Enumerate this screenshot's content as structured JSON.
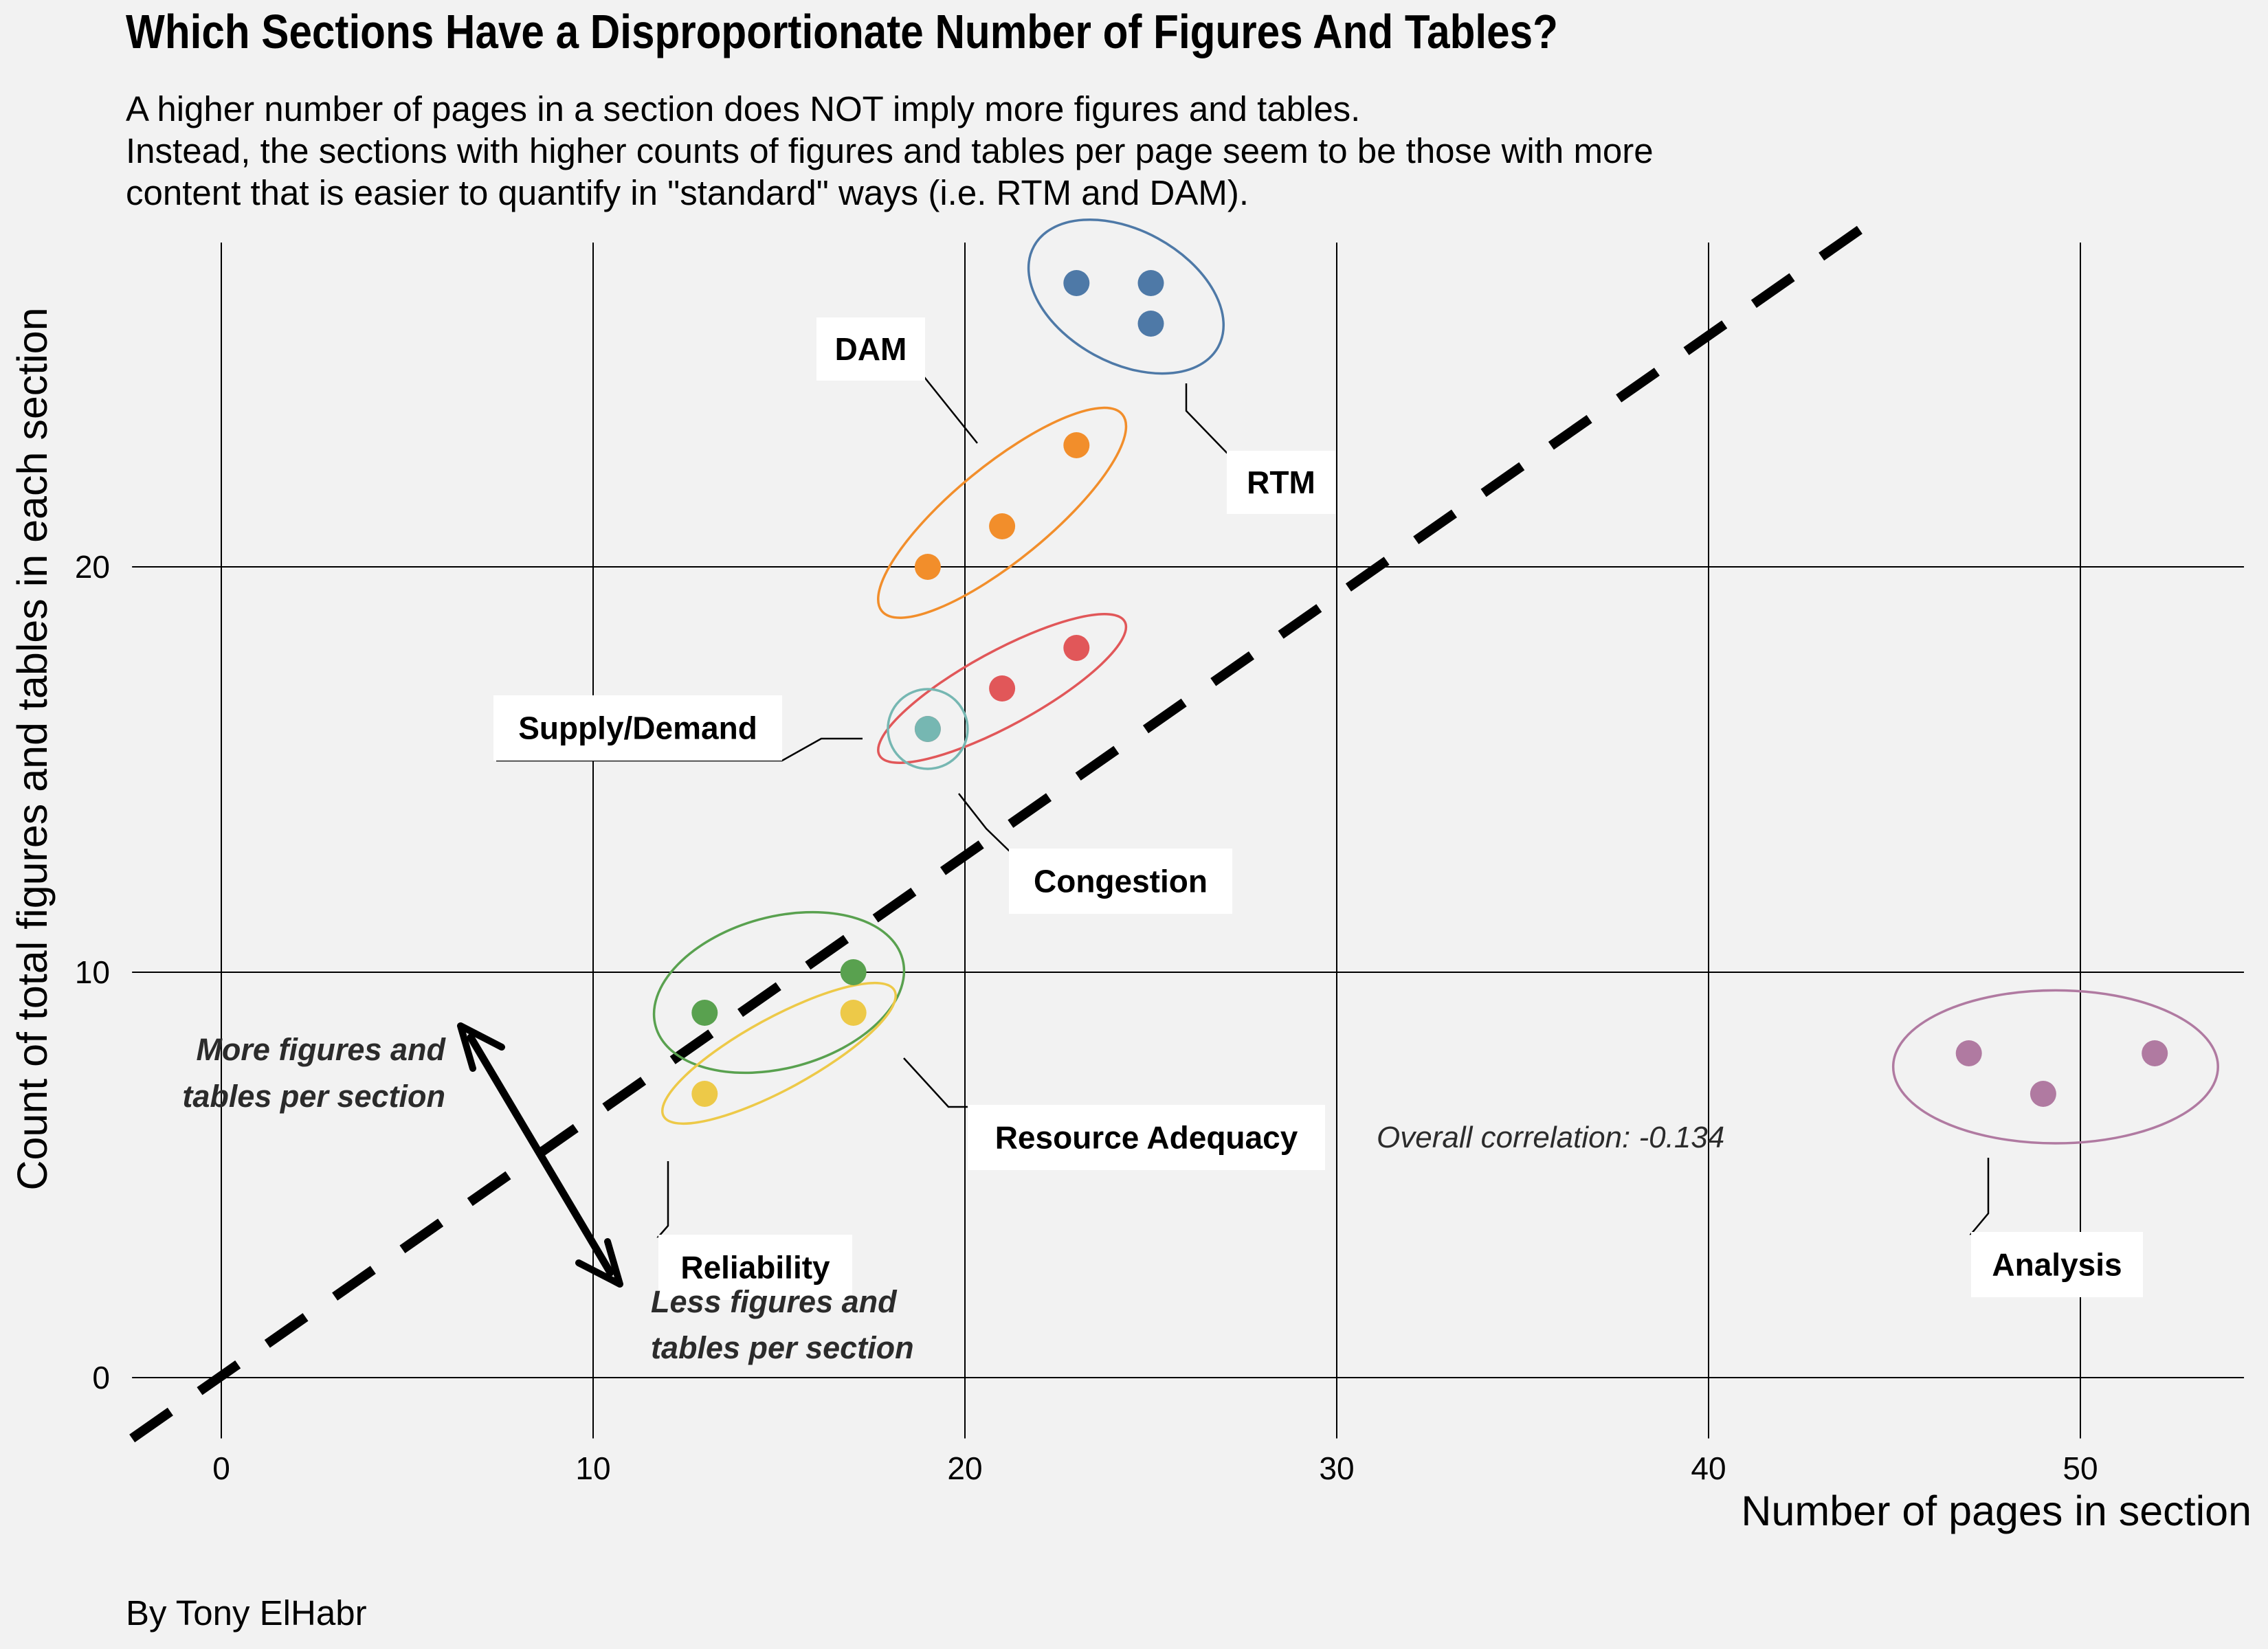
{
  "title": "Which Sections Have a Disproportionate Number of Figures And Tables?",
  "subtitle_lines": [
    "A higher number of pages in a section does NOT imply more figures and tables.",
    "Instead, the sections with higher counts of figures and tables per page seem to be those with more",
    "content that is easier to quantify in \"standard\" ways (i.e. RTM and DAM)."
  ],
  "caption": "By Tony ElHabr",
  "colors": {
    "background": "#f2f2f2",
    "RTM": "#4e79a7",
    "DAM": "#f28e2b",
    "Congestion": "#e15759",
    "Supply/Demand": "#76b7b2",
    "Reliability": "#59a14f",
    "Resource Adequacy": "#edc948",
    "Analysis": "#b07aa1"
  },
  "chart_data": {
    "type": "scatter",
    "title": "Which Sections Have a Disproportionate Number of Figures And Tables?",
    "xlabel": "Number of pages in section",
    "ylabel": "Count of total figures and tables in each section",
    "xlim": [
      -2.4,
      54.4
    ],
    "ylim": [
      -1.5,
      28
    ],
    "x_ticks": [
      "0",
      "10",
      "20",
      "30",
      "40",
      "50"
    ],
    "y_ticks": [
      "0",
      "10",
      "20"
    ],
    "grid": true,
    "series": [
      {
        "name": "RTM",
        "points": [
          [
            23,
            27
          ],
          [
            25,
            27
          ],
          [
            25,
            26
          ]
        ]
      },
      {
        "name": "DAM",
        "points": [
          [
            19,
            20
          ],
          [
            21,
            21
          ],
          [
            23,
            23
          ]
        ]
      },
      {
        "name": "Congestion",
        "points": [
          [
            19,
            16
          ],
          [
            21,
            17
          ],
          [
            23,
            18
          ]
        ]
      },
      {
        "name": "Supply/Demand",
        "points": [
          [
            19,
            16
          ]
        ]
      },
      {
        "name": "Reliability",
        "points": [
          [
            13,
            9
          ],
          [
            17,
            10
          ]
        ]
      },
      {
        "name": "Resource Adequacy",
        "points": [
          [
            13,
            7
          ],
          [
            17,
            9
          ]
        ]
      },
      {
        "name": "Analysis",
        "points": [
          [
            47,
            8
          ],
          [
            49,
            7
          ],
          [
            52,
            8
          ]
        ]
      }
    ],
    "reference_line": {
      "style": "dashed",
      "x": [
        -2.4,
        44.2
      ],
      "y": [
        -1.5,
        28.4
      ]
    },
    "correlation_label": "Overall correlation: -0.134",
    "annotations": {
      "more": [
        "More figures and",
        "tables per section"
      ],
      "less": [
        "Less figures and",
        "tables per section"
      ]
    }
  }
}
